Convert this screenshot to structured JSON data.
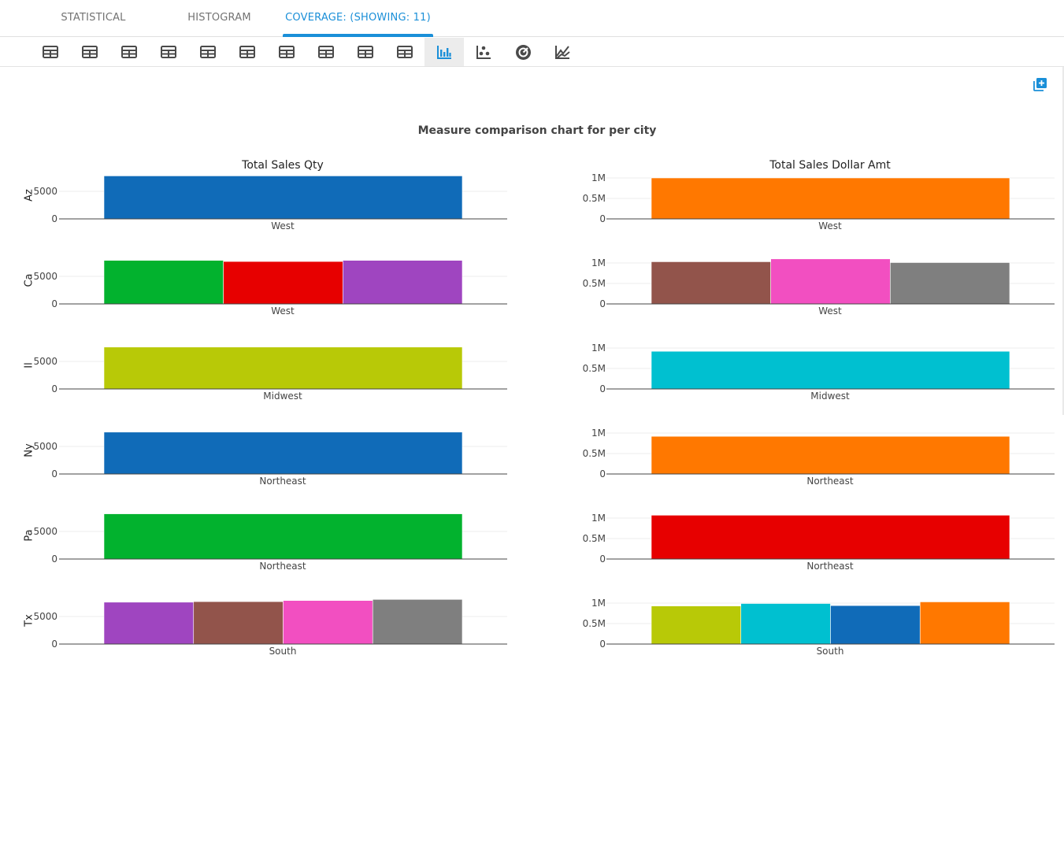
{
  "tabs": [
    {
      "label": "STATISTICAL",
      "active": false
    },
    {
      "label": "HISTOGRAM",
      "active": false
    },
    {
      "label": "COVERAGE: (SHOWING: 11)",
      "active": true
    }
  ],
  "toolbar": {
    "icons": [
      "table-icon",
      "table-icon",
      "table-icon",
      "table-icon",
      "table-icon",
      "table-icon",
      "table-icon",
      "table-icon",
      "table-icon",
      "table-icon",
      "bar-chart-icon",
      "scatter-icon",
      "radar-icon",
      "line-chart-icon"
    ],
    "active_index": 10,
    "accent": "#1a8fd8",
    "icon_color": "#4a4a4a"
  },
  "add_button": {
    "icon": "add-to-collection-icon",
    "color": "#1a8fd8"
  },
  "chart_data": {
    "type": "bar",
    "title": "Measure comparison chart for per city",
    "columns": [
      {
        "title": "Total Sales Qty",
        "yticks": [
          "0",
          "5000"
        ],
        "ymax": 10000
      },
      {
        "title": "Total Sales Dollar Amt",
        "yticks": [
          "0",
          "0.5M",
          "1M"
        ],
        "ymax": 1000000
      }
    ],
    "rows": [
      {
        "city": "Az",
        "region": "West",
        "qty": [
          {
            "value": 7800,
            "color": "#106bb8"
          }
        ],
        "amount": [
          {
            "value": 1000000,
            "color": "#ff7800"
          }
        ]
      },
      {
        "city": "Ca",
        "region": "West",
        "qty": [
          {
            "value": 7900,
            "color": "#02b22e"
          },
          {
            "value": 7700,
            "color": "#e70000"
          },
          {
            "value": 7900,
            "color": "#9f45c0"
          }
        ],
        "amount": [
          {
            "value": 1030000,
            "color": "#92544b"
          },
          {
            "value": 1100000,
            "color": "#f24fc1"
          },
          {
            "value": 1010000,
            "color": "#7f7f7f"
          }
        ]
      },
      {
        "city": "Il",
        "region": "Midwest",
        "qty": [
          {
            "value": 7600,
            "color": "#b8c907"
          }
        ],
        "amount": [
          {
            "value": 920000,
            "color": "#00c0d0"
          }
        ]
      },
      {
        "city": "Ny",
        "region": "Northeast",
        "qty": [
          {
            "value": 7600,
            "color": "#106bb8"
          }
        ],
        "amount": [
          {
            "value": 920000,
            "color": "#ff7800"
          }
        ]
      },
      {
        "city": "Pa",
        "region": "Northeast",
        "qty": [
          {
            "value": 8200,
            "color": "#02b22e"
          }
        ],
        "amount": [
          {
            "value": 1070000,
            "color": "#e70000"
          }
        ]
      },
      {
        "city": "Tx",
        "region": "South",
        "qty": [
          {
            "value": 7600,
            "color": "#9f45c0"
          },
          {
            "value": 7700,
            "color": "#92544b"
          },
          {
            "value": 7900,
            "color": "#f24fc1"
          },
          {
            "value": 8100,
            "color": "#7f7f7f"
          }
        ],
        "amount": [
          {
            "value": 930000,
            "color": "#b8c907"
          },
          {
            "value": 990000,
            "color": "#00c0d0"
          },
          {
            "value": 940000,
            "color": "#106bb8"
          },
          {
            "value": 1030000,
            "color": "#ff7800"
          }
        ]
      }
    ]
  }
}
